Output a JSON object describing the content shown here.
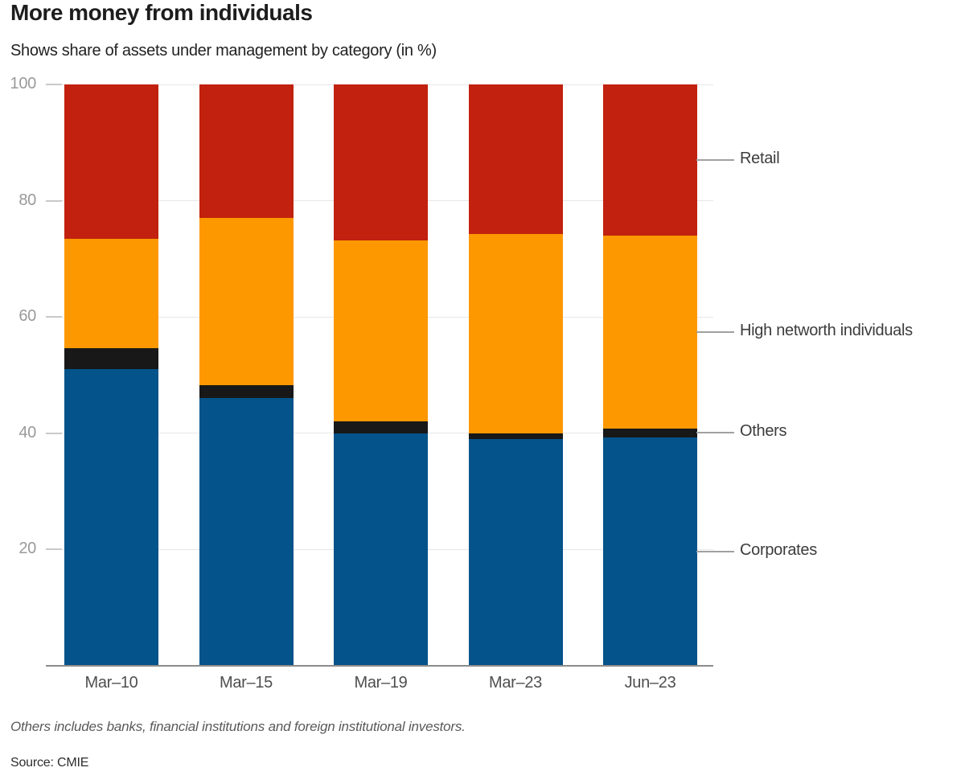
{
  "header": {
    "title": "More money from individuals",
    "subtitle": "Shows share of assets under management by category (in %)"
  },
  "chart_data": {
    "type": "bar",
    "stacked": true,
    "title": "More money from individuals",
    "subtitle": "Shows share of assets under management by category (in %)",
    "categories": [
      "Mar–10",
      "Mar–15",
      "Mar–19",
      "Mar–23",
      "Jun–23"
    ],
    "series": [
      {
        "name": "Corporates",
        "color": "#04538a",
        "values": [
          51,
          46,
          40,
          39,
          39.3
        ]
      },
      {
        "name": "Others",
        "color": "#181818",
        "values": [
          3.7,
          2.3,
          2,
          1,
          1.5
        ]
      },
      {
        "name": "High networth individuals",
        "color": "#fe9801",
        "values": [
          18.8,
          28.8,
          31.2,
          34.3,
          33.2
        ]
      },
      {
        "name": "Retail",
        "color": "#c1210e",
        "values": [
          26.5,
          22.9,
          26.8,
          25.7,
          26
        ]
      }
    ],
    "ylabel": "",
    "xlabel": "",
    "ylim": [
      0,
      100
    ],
    "yticks": [
      20,
      40,
      60,
      80,
      100
    ],
    "grid": true,
    "legend_position": "right"
  },
  "colors": {
    "corporates": "#04538a",
    "others": "#181818",
    "hni": "#fe9801",
    "retail": "#c1210e",
    "axis_line": "#8c8c8c",
    "gridline": "#e7e7e7"
  },
  "footer": {
    "note": "Others includes banks, financial institutions and foreign institutional investors.",
    "source": "Source: CMIE"
  }
}
